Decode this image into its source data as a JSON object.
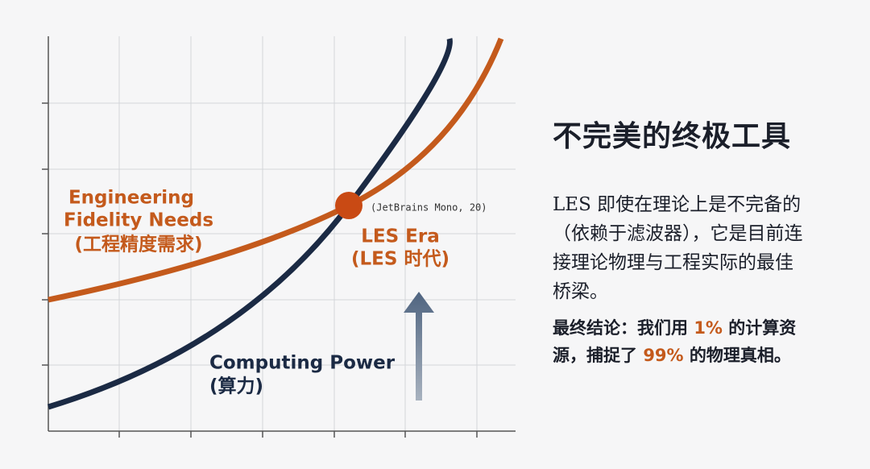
{
  "chart": {
    "labels": {
      "fidelity": [
        "Engineering",
        "Fidelity Needs",
        "(工程精度需求)"
      ],
      "font_note": "(JetBrains Mono, 20)",
      "les_era": [
        "LES Era",
        "(LES 时代)"
      ],
      "computing": [
        "Computing Power",
        "(算力)"
      ]
    }
  },
  "panel": {
    "title": "不完美的终极工具",
    "paragraph": [
      "LES 即使在理论上是不完备的",
      "（依赖于滤波器），它是目前连",
      "接理论物理与工程实际的最佳",
      "桥梁。"
    ],
    "conclusion": [
      [
        "最终结论：我们用 ",
        "1%",
        " 的计算资"
      ],
      [
        "源，捕捉了 ",
        "99%",
        " 的物理真相。"
      ]
    ]
  }
}
